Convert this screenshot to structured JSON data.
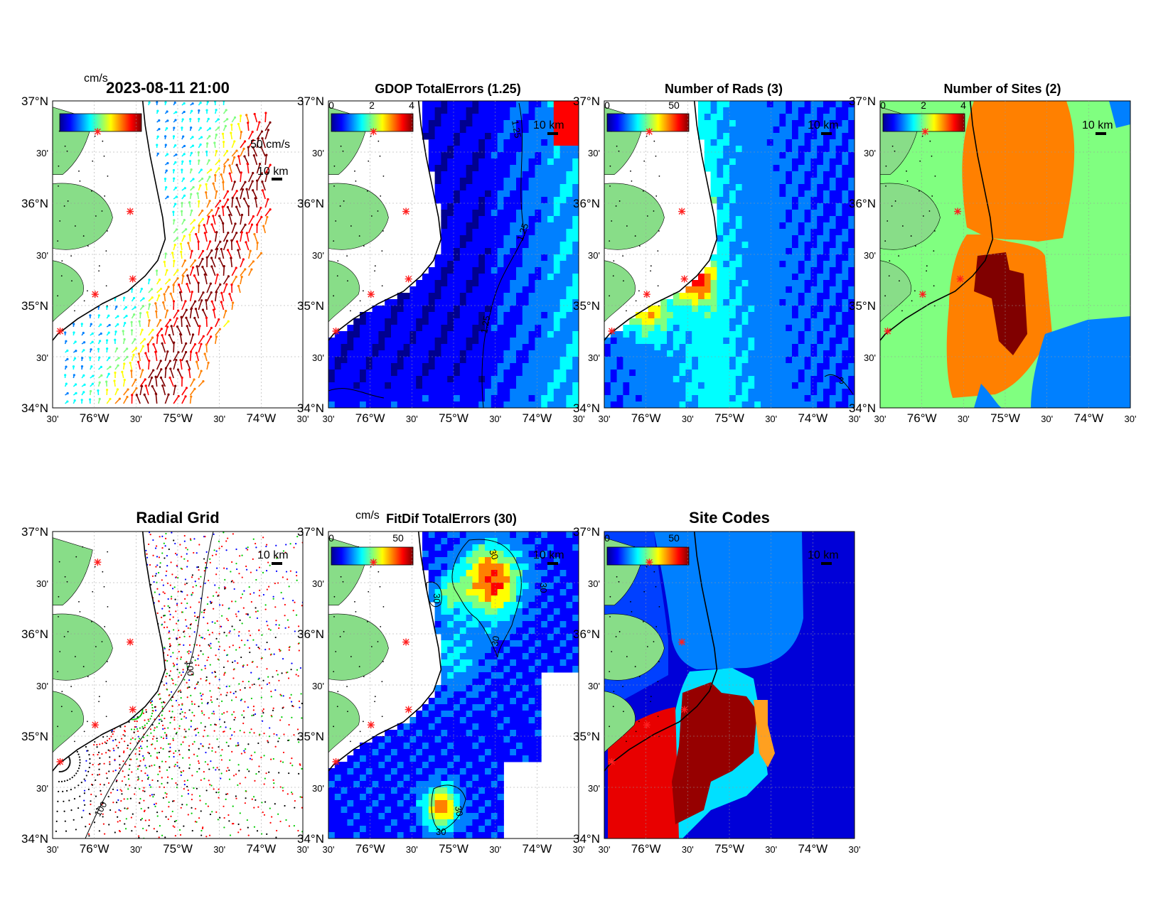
{
  "figure": {
    "timestamp": "2023-08-11 21:00",
    "colormap": [
      "#00008f",
      "#0000ff",
      "#0080ff",
      "#00ffff",
      "#80ff80",
      "#ffff00",
      "#ff8000",
      "#ff0000",
      "#800000"
    ],
    "land_color": "#88dd88",
    "site_color": "#ff2020",
    "axes": {
      "lat_labels": [
        "37°N",
        "30'",
        "36°N",
        "30'",
        "35°N",
        "30'",
        "34°N"
      ],
      "lon_labels": [
        "30'",
        "76°W",
        "30'",
        "75°W",
        "30'",
        "74°W",
        "30'"
      ],
      "lat_range": [
        34,
        37
      ],
      "lon_range": [
        -76.5,
        -73.5
      ]
    }
  },
  "panels": {
    "currents": {
      "title": "2023-08-11 21:00",
      "colorbar_unit": "cm/s",
      "colorbar_ticks": [],
      "scale_label": "50 cm/s",
      "km_label": "10 km"
    },
    "gdop": {
      "title": "GDOP TotalErrors (1.25)",
      "colorbar_ticks": [
        "0",
        "2",
        "4"
      ],
      "km_label": "10 km",
      "contour_label": "1.25"
    },
    "rads": {
      "title": "Number of Rads (3)",
      "colorbar_ticks": [
        "0",
        "50"
      ],
      "km_label": "10 km",
      "contour_label": "3"
    },
    "sites": {
      "title": "Number of Sites (2)",
      "colorbar_ticks": [
        "0",
        "2",
        "4"
      ],
      "km_label": "10 km",
      "contour_label": "2"
    },
    "radial": {
      "title": "Radial Grid",
      "km_label": "10 km",
      "contour_label": "100"
    },
    "fitdif": {
      "title": "FitDif TotalErrors (30)",
      "colorbar_unit": "cm/s",
      "colorbar_ticks": [
        "0",
        "50"
      ],
      "km_label": "10 km",
      "contour_label": "30"
    },
    "sitecodes": {
      "title": "Site Codes",
      "colorbar_ticks": [
        "0",
        "50"
      ],
      "km_label": "10 km"
    }
  }
}
